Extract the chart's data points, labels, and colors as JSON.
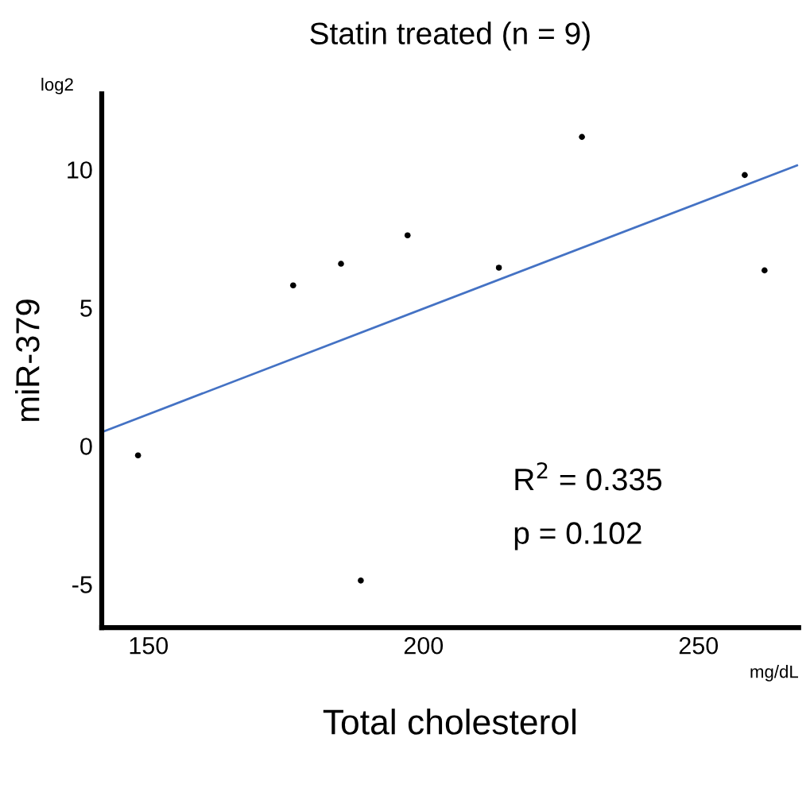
{
  "chart_data": {
    "type": "scatter",
    "title": "Statin treated (n = 9)",
    "xlabel": "Total cholesterol",
    "ylabel": "miR-379",
    "xlim": [
      141.5,
      268.2
    ],
    "ylim": [
      -6.57,
      12.74
    ],
    "xticks": [
      150,
      200,
      250
    ],
    "yticks": [
      -5,
      0,
      5,
      10
    ],
    "grid": false,
    "legend": false,
    "series": [
      {
        "marker": "circle",
        "color": "#000000",
        "x": [
          148.1,
          176.3,
          185.0,
          197.1,
          188.6,
          213.7,
          228.8,
          258.4,
          262.0
        ],
        "values": [
          -0.34,
          5.81,
          6.59,
          7.62,
          -4.87,
          6.45,
          11.18,
          9.8,
          6.35
        ]
      },
      {
        "type": "line",
        "marker": "none",
        "color": "#4472c4",
        "x": [
          141.9,
          267.9
        ],
        "values": [
          0.53,
          10.15
        ]
      }
    ],
    "annotations": [
      "log2",
      "mg/dL",
      "R$^{2}$ = 0.335",
      "p = 0.102"
    ]
  }
}
